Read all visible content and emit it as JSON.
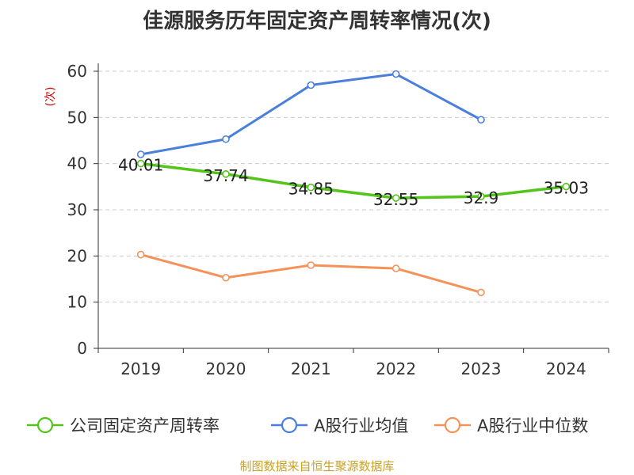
{
  "title": "佳源服务历年固定资产周转率情况(次)",
  "source": "制图数据来自恒生聚源数据库",
  "chart_data": {
    "type": "line",
    "title": "佳源服务历年固定资产周转率情况(次)",
    "xlabel": "",
    "ylabel": "(次)",
    "categories": [
      "2019",
      "2020",
      "2021",
      "2022",
      "2023",
      "2024"
    ],
    "ylim": [
      0,
      60
    ],
    "yticks": [
      0,
      10,
      20,
      30,
      40,
      50,
      60
    ],
    "grid": true,
    "legend_position": "bottom",
    "series": [
      {
        "name": "公司固定资产周转率",
        "color": "#52c41a",
        "values": [
          40.01,
          37.74,
          34.85,
          32.55,
          32.9,
          35.03
        ],
        "labels": [
          "40.01",
          "37.74",
          "34.85",
          "32.55",
          "32.9",
          "35.03"
        ]
      },
      {
        "name": "A股行业均值",
        "color": "#4a7fdc",
        "values": [
          42,
          45.3,
          57,
          59.4,
          49.5,
          null
        ]
      },
      {
        "name": "A股行业中位数",
        "color": "#f5925a",
        "values": [
          20.3,
          15.3,
          18,
          17.3,
          12.1,
          null
        ]
      }
    ]
  },
  "colors": {
    "axis": "#333333",
    "grid": "#cccccc",
    "ylabel": "#cc0000",
    "source": "#c9a227"
  }
}
